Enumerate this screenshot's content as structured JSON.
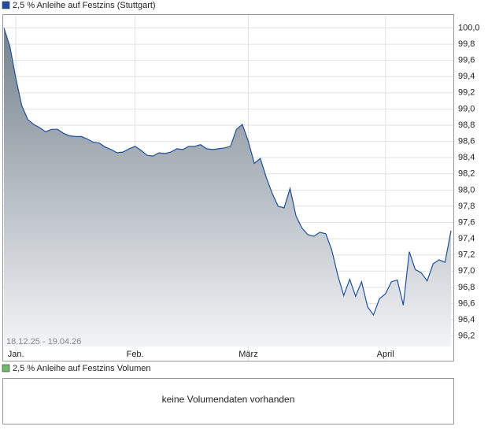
{
  "chart_data": {
    "type": "area",
    "title": "2,5 % Anleihe auf Festzins (Stuttgart)",
    "range_label": "18.12.25 - 19.04.26",
    "volume_title": "2,5 % Anleihe auf Festzins Volumen",
    "volume_message": "keine Volumendaten vorhanden",
    "color": "#1f4e9c",
    "volume_color": "#6dbb6d",
    "grid": true,
    "series": [
      {
        "name": "2,5 % Anleihe auf Festzins (Stuttgart)",
        "color": "#1f4e9c",
        "values": [
          100.0,
          99.77,
          99.38,
          99.04,
          98.87,
          98.81,
          98.77,
          98.72,
          98.75,
          98.75,
          98.7,
          98.67,
          98.66,
          98.66,
          98.63,
          98.59,
          98.58,
          98.53,
          98.5,
          98.46,
          98.47,
          98.51,
          98.54,
          98.49,
          98.43,
          98.42,
          98.46,
          98.45,
          98.47,
          98.51,
          98.5,
          98.54,
          98.54,
          98.56,
          98.51,
          98.5,
          98.51,
          98.52,
          98.54,
          98.75,
          98.81,
          98.6,
          98.33,
          98.39,
          98.16,
          97.96,
          97.8,
          97.78,
          98.02,
          97.68,
          97.53,
          97.45,
          97.43,
          97.48,
          97.46,
          97.26,
          96.95,
          96.7,
          96.9,
          96.69,
          96.87,
          96.56,
          96.46,
          96.66,
          96.72,
          96.87,
          96.89,
          96.58,
          97.24,
          97.02,
          96.98,
          96.88,
          97.09,
          97.14,
          97.11,
          97.5
        ]
      }
    ],
    "xlim": [
      0,
      75
    ],
    "xticks": [
      {
        "value": 2,
        "label": "Jan."
      },
      {
        "value": 22,
        "label": "Feb."
      },
      {
        "value": 41,
        "label": "März"
      },
      {
        "value": 64,
        "label": "April"
      }
    ],
    "ylim": [
      96.07,
      100.17
    ],
    "yticks": [
      {
        "value": 96.2,
        "label": "96,2"
      },
      {
        "value": 96.4,
        "label": "96,4"
      },
      {
        "value": 96.6,
        "label": "96,6"
      },
      {
        "value": 96.8,
        "label": "96,8"
      },
      {
        "value": 97.0,
        "label": "97,0"
      },
      {
        "value": 97.2,
        "label": "97,2"
      },
      {
        "value": 97.4,
        "label": "97,4"
      },
      {
        "value": 97.6,
        "label": "97,6"
      },
      {
        "value": 97.8,
        "label": "97,8"
      },
      {
        "value": 98.0,
        "label": "98,0"
      },
      {
        "value": 98.2,
        "label": "98,2"
      },
      {
        "value": 98.4,
        "label": "98,4"
      },
      {
        "value": 98.6,
        "label": "98,6"
      },
      {
        "value": 98.8,
        "label": "98,8"
      },
      {
        "value": 99.0,
        "label": "99,0"
      },
      {
        "value": 99.2,
        "label": "99,2"
      },
      {
        "value": 99.4,
        "label": "99,4"
      },
      {
        "value": 99.6,
        "label": "99,6"
      },
      {
        "value": 99.8,
        "label": "99,8"
      },
      {
        "value": 100.0,
        "label": "100,0"
      }
    ]
  }
}
